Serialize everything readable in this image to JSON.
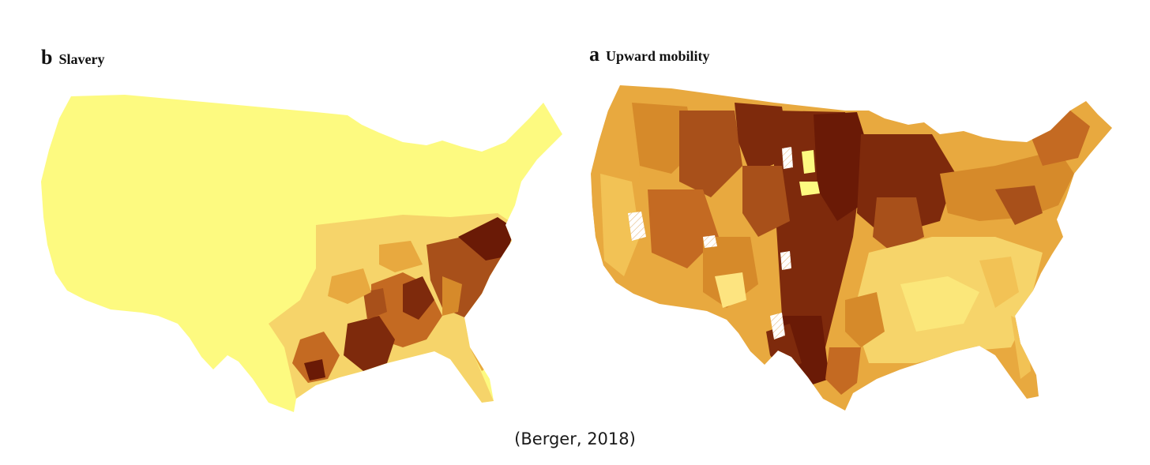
{
  "panels": {
    "slavery": {
      "letter": "b",
      "title": "Slavery"
    },
    "mobility": {
      "letter": "a",
      "title": "Upward mobility"
    }
  },
  "caption": "(Berger, 2018)",
  "colors": {
    "lightest": "#fdfa80",
    "light": "#f6d46a",
    "mid": "#e8a93f",
    "orange": "#d68a2a",
    "brown": "#a8501a",
    "dark": "#7e2a0c",
    "darkest": "#6a1a06",
    "hatch": "#ffffff"
  }
}
